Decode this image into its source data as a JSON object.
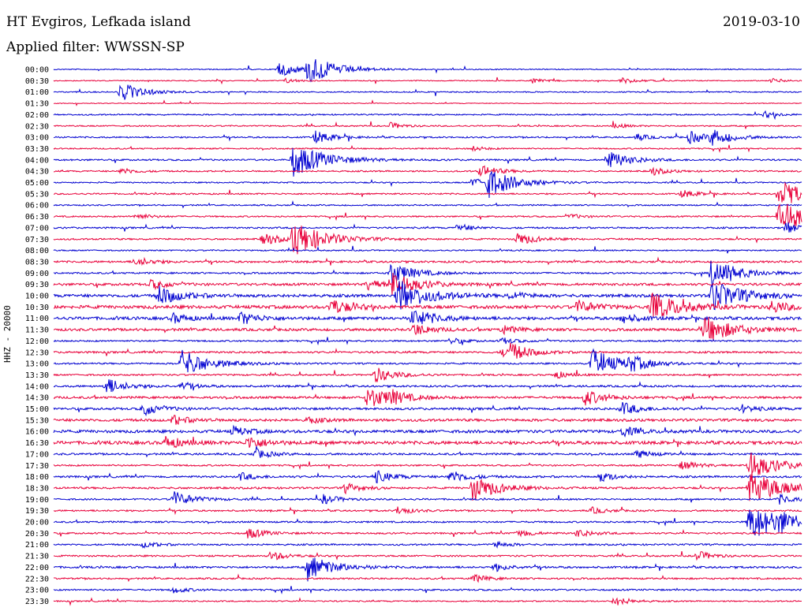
{
  "header": {
    "station": "HT Evgiros, Lefkada island",
    "date": "2019-03-10",
    "filter": "Applied filter: WWSSN-SP"
  },
  "chart_data": {
    "type": "line",
    "ylabel": "HHZ - 20000",
    "colors": [
      "#0000d0",
      "#e8003a"
    ],
    "hour_labels": [
      "00:00",
      "00:30",
      "01:00",
      "01:30",
      "02:00",
      "02:30",
      "03:00",
      "03:30",
      "04:00",
      "04:30",
      "05:00",
      "05:30",
      "06:00",
      "06:30",
      "07:00",
      "07:30",
      "08:00",
      "08:30",
      "09:00",
      "09:30",
      "10:00",
      "10:30",
      "11:00",
      "11:30",
      "12:00",
      "12:30",
      "13:00",
      "13:30",
      "14:00",
      "14:30",
      "15:00",
      "15:30",
      "16:00",
      "16:30",
      "17:00",
      "17:30",
      "18:00",
      "18:30",
      "19:00",
      "19:30",
      "20:00",
      "20:30",
      "21:00",
      "21:30",
      "22:00",
      "22:30",
      "23:00",
      "23:30"
    ],
    "noise_levels": [
      0.6,
      0.6,
      0.7,
      0.5,
      0.8,
      0.8,
      0.9,
      0.8,
      1.0,
      0.9,
      0.8,
      0.9,
      0.8,
      0.9,
      1.0,
      1.0,
      0.8,
      1.2,
      1.0,
      1.5,
      1.8,
      2.0,
      1.8,
      1.6,
      1.0,
      1.2,
      1.0,
      1.0,
      1.2,
      1.4,
      1.4,
      1.6,
      1.8,
      2.0,
      1.2,
      1.0,
      1.2,
      1.2,
      1.0,
      1.0,
      1.0,
      1.0,
      1.0,
      1.0,
      1.2,
      1.0,
      1.0,
      0.8
    ],
    "events": [
      [
        [
          0.3,
          10
        ],
        [
          0.34,
          18
        ]
      ],
      [
        [
          0.31,
          3
        ],
        [
          0.64,
          3
        ],
        [
          0.76,
          4
        ],
        [
          0.96,
          3
        ]
      ],
      [
        [
          0.09,
          12
        ]
      ],
      [],
      [
        [
          0.95,
          4
        ]
      ],
      [
        [
          0.45,
          4
        ],
        [
          0.75,
          3
        ]
      ],
      [
        [
          0.35,
          8
        ],
        [
          0.78,
          4
        ],
        [
          0.85,
          8
        ],
        [
          0.88,
          10
        ]
      ],
      [
        [
          0.56,
          3
        ]
      ],
      [
        [
          0.32,
          22
        ],
        [
          0.74,
          12
        ]
      ],
      [
        [
          0.09,
          4
        ],
        [
          0.57,
          8
        ],
        [
          0.8,
          5
        ]
      ],
      [
        [
          0.56,
          6
        ],
        [
          0.58,
          18
        ]
      ],
      [
        [
          0.84,
          5
        ],
        [
          0.97,
          18
        ]
      ],
      [],
      [
        [
          0.11,
          4
        ],
        [
          0.69,
          3
        ],
        [
          0.97,
          22
        ]
      ],
      [
        [
          0.54,
          5
        ],
        [
          0.98,
          8
        ]
      ],
      [
        [
          0.28,
          8
        ],
        [
          0.32,
          22
        ],
        [
          0.62,
          8
        ]
      ],
      [],
      [
        [
          0.11,
          6
        ]
      ],
      [
        [
          0.45,
          14
        ],
        [
          0.88,
          18
        ]
      ],
      [
        [
          0.13,
          6
        ],
        [
          0.42,
          6
        ],
        [
          0.45,
          16
        ]
      ],
      [
        [
          0.14,
          12
        ],
        [
          0.46,
          20
        ],
        [
          0.61,
          5
        ],
        [
          0.88,
          20
        ]
      ],
      [
        [
          0.37,
          10
        ],
        [
          0.7,
          8
        ],
        [
          0.8,
          18
        ],
        [
          0.96,
          8
        ]
      ],
      [
        [
          0.16,
          6
        ],
        [
          0.25,
          8
        ],
        [
          0.48,
          12
        ],
        [
          0.76,
          6
        ]
      ],
      [
        [
          0.48,
          8
        ],
        [
          0.6,
          5
        ],
        [
          0.87,
          18
        ]
      ],
      [
        [
          0.53,
          4
        ],
        [
          0.6,
          4
        ]
      ],
      [
        [
          0.6,
          5
        ],
        [
          0.61,
          10
        ]
      ],
      [
        [
          0.17,
          18
        ],
        [
          0.72,
          18
        ],
        [
          0.77,
          8
        ]
      ],
      [
        [
          0.43,
          10
        ],
        [
          0.67,
          5
        ]
      ],
      [
        [
          0.07,
          10
        ],
        [
          0.17,
          5
        ]
      ],
      [
        [
          0.42,
          14
        ],
        [
          0.45,
          6
        ],
        [
          0.71,
          10
        ]
      ],
      [
        [
          0.12,
          8
        ],
        [
          0.76,
          8
        ],
        [
          0.92,
          5
        ]
      ],
      [
        [
          0.16,
          6
        ],
        [
          0.34,
          4
        ]
      ],
      [
        [
          0.24,
          6
        ],
        [
          0.76,
          6
        ]
      ],
      [
        [
          0.15,
          8
        ],
        [
          0.26,
          8
        ]
      ],
      [
        [
          0.27,
          6
        ],
        [
          0.78,
          5
        ]
      ],
      [
        [
          0.84,
          6
        ],
        [
          0.93,
          18
        ]
      ],
      [
        [
          0.25,
          5
        ],
        [
          0.43,
          8
        ],
        [
          0.53,
          8
        ],
        [
          0.73,
          6
        ]
      ],
      [
        [
          0.39,
          6
        ],
        [
          0.56,
          16
        ],
        [
          0.93,
          22
        ]
      ],
      [
        [
          0.16,
          10
        ],
        [
          0.36,
          6
        ],
        [
          0.97,
          6
        ]
      ],
      [
        [
          0.46,
          5
        ],
        [
          0.72,
          4
        ]
      ],
      [
        [
          0.93,
          24
        ],
        [
          0.97,
          8
        ]
      ],
      [
        [
          0.26,
          7
        ],
        [
          0.62,
          5
        ],
        [
          0.7,
          5
        ]
      ],
      [
        [
          0.12,
          4
        ],
        [
          0.59,
          4
        ]
      ],
      [
        [
          0.29,
          6
        ],
        [
          0.86,
          6
        ]
      ],
      [
        [
          0.34,
          16
        ],
        [
          0.59,
          5
        ]
      ],
      [
        [
          0.56,
          5
        ]
      ],
      [
        [
          0.16,
          4
        ]
      ],
      [
        [
          0.75,
          6
        ]
      ]
    ]
  }
}
